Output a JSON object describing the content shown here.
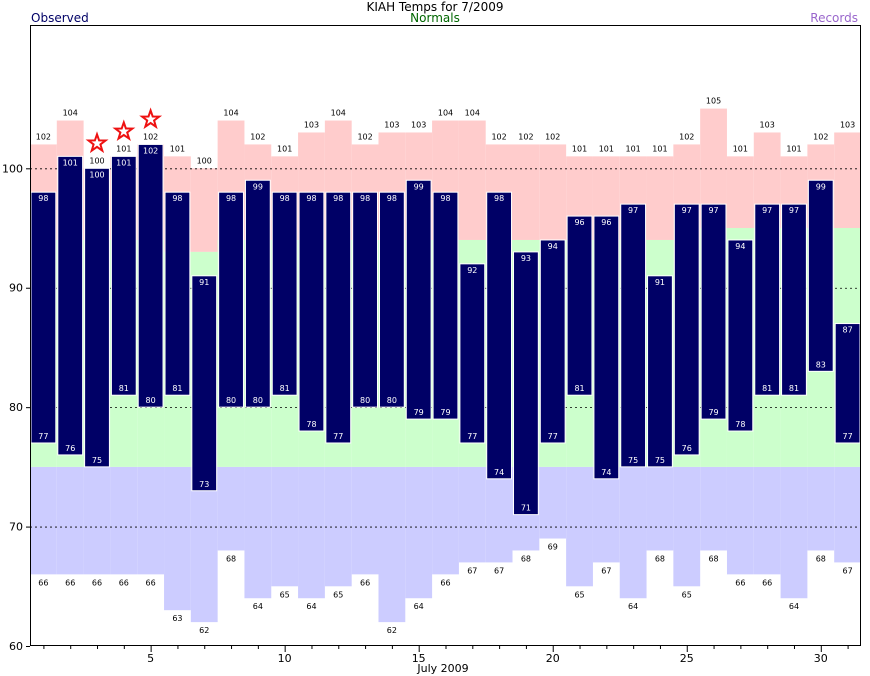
{
  "chart_data": {
    "type": "bar",
    "title": "KIAH Temps for 7/2009",
    "xlabel": "July 2009",
    "legend": {
      "observed": "Observed",
      "normals": "Normals",
      "records": "Records",
      "placement": "top"
    },
    "x_ticks": [
      5,
      10,
      15,
      20,
      25,
      30
    ],
    "y_ticks": [
      60,
      70,
      80,
      90,
      100
    ],
    "ylim": [
      60,
      112
    ],
    "xlim": [
      0.5,
      31.5
    ],
    "grid": {
      "dashed_y": [
        70,
        80,
        90,
        100
      ]
    },
    "days": [
      1,
      2,
      3,
      4,
      5,
      6,
      7,
      8,
      9,
      10,
      11,
      12,
      13,
      14,
      15,
      16,
      17,
      18,
      19,
      20,
      21,
      22,
      23,
      24,
      25,
      26,
      27,
      28,
      29,
      30,
      31
    ],
    "observed_high": [
      98,
      101,
      100,
      101,
      102,
      98,
      91,
      98,
      99,
      98,
      98,
      98,
      98,
      98,
      99,
      98,
      92,
      98,
      93,
      94,
      96,
      96,
      97,
      91,
      97,
      97,
      94,
      97,
      97,
      99,
      87
    ],
    "observed_low": [
      77,
      76,
      75,
      81,
      80,
      81,
      73,
      80,
      80,
      81,
      78,
      77,
      80,
      80,
      79,
      79,
      77,
      74,
      71,
      77,
      81,
      74,
      75,
      75,
      76,
      79,
      78,
      81,
      81,
      83,
      77
    ],
    "record_high": [
      102,
      104,
      100,
      101,
      102,
      101,
      100,
      104,
      102,
      101,
      103,
      104,
      102,
      103,
      103,
      104,
      104,
      102,
      102,
      102,
      101,
      101,
      101,
      101,
      102,
      105,
      101,
      103,
      101,
      102,
      103
    ],
    "record_low": [
      66,
      66,
      66,
      66,
      66,
      63,
      62,
      68,
      64,
      65,
      64,
      65,
      66,
      62,
      64,
      66,
      67,
      67,
      68,
      69,
      65,
      67,
      64,
      68,
      65,
      68,
      66,
      66,
      64,
      68,
      67
    ],
    "normal_high": [
      94,
      94,
      94,
      94,
      94,
      93,
      93,
      94,
      94,
      94,
      94,
      94,
      94,
      94,
      94,
      94,
      94,
      94,
      94,
      94,
      94,
      94,
      94,
      94,
      94,
      95,
      95,
      95,
      95,
      95,
      95
    ],
    "normal_low": [
      75,
      75,
      75,
      75,
      75,
      75,
      75,
      75,
      75,
      75,
      75,
      75,
      75,
      75,
      75,
      75,
      75,
      75,
      75,
      75,
      75,
      75,
      75,
      75,
      75,
      75,
      75,
      75,
      75,
      75,
      75
    ],
    "record_set_days": [
      3,
      4,
      5
    ],
    "colors": {
      "record_range": "#ffcccc",
      "normal_range": "#ccffcc",
      "low_band": "#ccccff",
      "observed_bar": "#000066",
      "observed_label": "#ffffff",
      "record_star": "#ee1111",
      "grid": "#000000"
    }
  }
}
